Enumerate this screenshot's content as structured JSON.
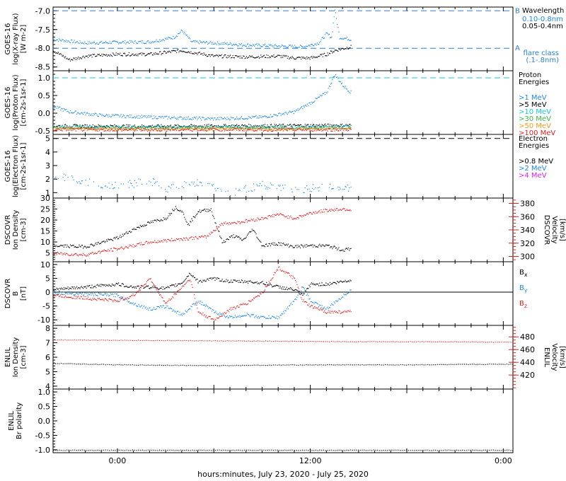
{
  "colors": {
    "black": "#000000",
    "blue": "#1e88e5",
    "cyan": "#12c8e0",
    "green": "#3cb44b",
    "orange": "#f39c12",
    "red": "#e02020",
    "magenta": "#e020e0",
    "dashblue": "#2a7fd0"
  },
  "xaxis": {
    "label": "hours:minutes, July 23, 2020 - July 25, 2020",
    "ticks": [
      "0:00",
      "12:00",
      "0:00"
    ],
    "tick_hours": [
      24,
      36,
      48
    ],
    "range_hours": [
      20,
      48.6
    ],
    "data_end_hour": 38.5
  },
  "chart_data": [
    {
      "type": "scatter",
      "panel": "xray",
      "ylabel_lines": [
        "GOES-16",
        "log(X-ray Flux)",
        "[W m-2]"
      ],
      "ylim": [
        -8.6,
        -6.9
      ],
      "yticks": [
        "-7.0",
        "-7.5",
        "-8.0",
        "-8.5"
      ],
      "ytick_values": [
        -7.0,
        -7.5,
        -8.0,
        -8.5
      ],
      "reference_lines": [
        {
          "label": "B",
          "y": -7.0
        },
        {
          "label": "A",
          "y": -8.0
        }
      ],
      "legend_title": "Wavelength",
      "series": [
        {
          "name": "0.10-0.8nm",
          "color": "blue",
          "points": [
            [
              20,
              -7.75
            ],
            [
              22,
              -7.85
            ],
            [
              24,
              -7.83
            ],
            [
              26,
              -7.82
            ],
            [
              27.5,
              -7.7
            ],
            [
              28,
              -7.52
            ],
            [
              28.6,
              -7.82
            ],
            [
              30,
              -7.85
            ],
            [
              32,
              -7.9
            ],
            [
              34,
              -7.93
            ],
            [
              35.5,
              -7.95
            ],
            [
              36.5,
              -7.85
            ],
            [
              37,
              -7.6
            ],
            [
              37.3,
              -7.7
            ],
            [
              37.5,
              -6.95
            ],
            [
              37.8,
              -7.7
            ],
            [
              38.5,
              -7.75
            ]
          ]
        },
        {
          "name": "0.05-0.4nm",
          "color": "black",
          "points": [
            [
              20,
              -8.05
            ],
            [
              21,
              -8.3
            ],
            [
              22,
              -8.2
            ],
            [
              24,
              -8.15
            ],
            [
              26,
              -8.15
            ],
            [
              28,
              -8.05
            ],
            [
              30,
              -8.2
            ],
            [
              32,
              -8.22
            ],
            [
              34,
              -8.2
            ],
            [
              35,
              -8.25
            ],
            [
              36,
              -8.25
            ],
            [
              37,
              -8.15
            ],
            [
              37.5,
              -8.05
            ],
            [
              38.5,
              -7.95
            ]
          ]
        }
      ],
      "annotation_lines": [
        "flare class",
        "(.1-.8nm)"
      ]
    },
    {
      "type": "scatter",
      "panel": "proton",
      "ylabel_lines": [
        "GOES-16",
        "log(Proton Flux)",
        "[cm-2s-1sr-1]"
      ],
      "ylim": [
        -0.6,
        1.2
      ],
      "yticks": [
        "1.0",
        "0.5",
        "0.0",
        "-0.5"
      ],
      "ytick_values": [
        1.0,
        0.5,
        0.0,
        -0.5
      ],
      "reference_lines": [
        {
          "label": "",
          "y": 1.0
        }
      ],
      "legend_title_lines": [
        "Proton",
        "Energies"
      ],
      "series": [
        {
          "name": ">1 MeV",
          "color": "blue",
          "points": [
            [
              20,
              0.2
            ],
            [
              21,
              0.05
            ],
            [
              23,
              -0.05
            ],
            [
              26,
              -0.1
            ],
            [
              30,
              -0.15
            ],
            [
              33,
              -0.1
            ],
            [
              35,
              0.05
            ],
            [
              36,
              0.3
            ],
            [
              37,
              0.6
            ],
            [
              37.5,
              1.1
            ],
            [
              38,
              0.8
            ],
            [
              38.5,
              0.6
            ]
          ]
        },
        {
          "name": ">5 MeV",
          "color": "black",
          "points": [
            [
              20,
              -0.35
            ],
            [
              25,
              -0.36
            ],
            [
              30,
              -0.35
            ],
            [
              35,
              -0.34
            ],
            [
              38.5,
              -0.33
            ]
          ]
        },
        {
          "name": ">10 MeV",
          "color": "cyan",
          "points": [
            [
              20,
              -0.38
            ],
            [
              25,
              -0.39
            ],
            [
              30,
              -0.38
            ],
            [
              35,
              -0.38
            ],
            [
              38.5,
              -0.37
            ]
          ]
        },
        {
          "name": ">30 MeV",
          "color": "green",
          "points": [
            [
              20,
              -0.4
            ],
            [
              25,
              -0.41
            ],
            [
              30,
              -0.4
            ],
            [
              35,
              -0.41
            ],
            [
              38.5,
              -0.4
            ]
          ]
        },
        {
          "name": ">50 MeV",
          "color": "orange",
          "points": [
            [
              20,
              -0.43
            ],
            [
              25,
              -0.44
            ],
            [
              30,
              -0.43
            ],
            [
              35,
              -0.44
            ],
            [
              38.5,
              -0.43
            ]
          ]
        },
        {
          "name": ">100 MeV",
          "color": "red",
          "points": [
            [
              20,
              -0.45
            ],
            [
              25,
              -0.46
            ],
            [
              30,
              -0.45
            ],
            [
              35,
              -0.46
            ],
            [
              38.5,
              -0.45
            ]
          ]
        }
      ]
    },
    {
      "type": "scatter",
      "panel": "electron",
      "ylabel_lines": [
        "GOES-16",
        "log(Electron Flux)",
        "[cm-2s-1sr-1]"
      ],
      "ylim": [
        0.6,
        5.3
      ],
      "yticks": [
        "1",
        "2",
        "3",
        "4",
        "5"
      ],
      "ytick_values": [
        1,
        2,
        3,
        4,
        5
      ],
      "reference_lines": [
        {
          "label": "",
          "y": 5.0,
          "color": "black"
        }
      ],
      "legend_title_lines": [
        "Electron",
        "Energies"
      ],
      "series": [
        {
          "name": ">0.8 MeV",
          "color": "black",
          "points": []
        },
        {
          "name": ">2 MeV",
          "color": "blue",
          "points": [
            [
              20,
              2.0
            ],
            [
              21,
              2.2
            ],
            [
              22,
              1.8
            ],
            [
              24,
              1.5
            ],
            [
              26,
              1.9
            ],
            [
              27,
              1.3
            ],
            [
              29,
              1.8
            ],
            [
              31,
              1.0
            ],
            [
              33,
              1.6
            ],
            [
              35,
              1.2
            ],
            [
              37,
              1.5
            ],
            [
              38.5,
              1.3
            ]
          ]
        },
        {
          "name": ">4 MeV",
          "color": "magenta",
          "points": []
        }
      ]
    },
    {
      "type": "scatter",
      "panel": "dscovr-plasma",
      "ylabel_lines": [
        "DSCOVR",
        "Ion Density",
        "[cm-3]"
      ],
      "ylim": [
        1,
        30
      ],
      "yticks": [
        "30",
        "25",
        "20",
        "15",
        "10",
        "5"
      ],
      "ytick_values": [
        30,
        25,
        20,
        15,
        10,
        5
      ],
      "right_ylabel_lines": [
        "DSCOVR",
        "Velocity",
        "[km/s]"
      ],
      "right_ylim": [
        292,
        388
      ],
      "right_yticks": [
        "380",
        "360",
        "340",
        "320",
        "300"
      ],
      "right_ytick_values": [
        380,
        360,
        340,
        320,
        300
      ],
      "series": [
        {
          "name": "density",
          "color": "black",
          "axis": "left",
          "points": [
            [
              20,
              8.5
            ],
            [
              22,
              8.0
            ],
            [
              23,
              10
            ],
            [
              24,
              12
            ],
            [
              25,
              16
            ],
            [
              26,
              19
            ],
            [
              27,
              21
            ],
            [
              27.6,
              26
            ],
            [
              28,
              24
            ],
            [
              28.4,
              18
            ],
            [
              29,
              24
            ],
            [
              29.8,
              25
            ],
            [
              30.5,
              10
            ],
            [
              31.2,
              13
            ],
            [
              31.8,
              11
            ],
            [
              32.4,
              16
            ],
            [
              33,
              8.5
            ],
            [
              34,
              9.5
            ],
            [
              35,
              8
            ],
            [
              36,
              8.5
            ],
            [
              37,
              8.5
            ],
            [
              38,
              6.5
            ],
            [
              38.5,
              7
            ]
          ]
        },
        {
          "name": "velocity",
          "color": "red",
          "axis": "right",
          "points": [
            [
              20,
              305
            ],
            [
              22,
              303
            ],
            [
              23,
              308
            ],
            [
              24,
              312
            ],
            [
              26,
              322
            ],
            [
              28,
              327
            ],
            [
              29.5,
              330
            ],
            [
              30.5,
              350
            ],
            [
              31.5,
              352
            ],
            [
              33,
              358
            ],
            [
              34,
              364
            ],
            [
              35,
              358
            ],
            [
              36,
              366
            ],
            [
              37,
              370
            ],
            [
              38,
              372
            ],
            [
              38.5,
              371
            ]
          ]
        }
      ]
    },
    {
      "type": "scatter",
      "panel": "dscovr-mag",
      "ylabel_lines": [
        "DSCOVR",
        "B",
        "[nT]"
      ],
      "ylim": [
        -12,
        11
      ],
      "yticks": [
        "10",
        "5",
        "0",
        "-5",
        "-10"
      ],
      "ytick_values": [
        10,
        5,
        0,
        -5,
        -10
      ],
      "zero_line": true,
      "series": [
        {
          "name": "Bx",
          "color": "black",
          "points": [
            [
              20,
              1
            ],
            [
              22,
              2
            ],
            [
              24,
              3
            ],
            [
              25,
              2
            ],
            [
              26,
              2
            ],
            [
              27,
              1.5
            ],
            [
              28,
              3.5
            ],
            [
              28.5,
              7
            ],
            [
              29,
              4
            ],
            [
              30,
              5
            ],
            [
              31,
              4
            ],
            [
              32,
              4
            ],
            [
              33,
              3.5
            ],
            [
              34,
              2
            ],
            [
              35,
              1
            ],
            [
              35.5,
              -1
            ],
            [
              36,
              3
            ],
            [
              37,
              3
            ],
            [
              38.5,
              4.5
            ]
          ]
        },
        {
          "name": "By",
          "color": "blue",
          "points": [
            [
              20,
              0
            ],
            [
              22,
              -0.5
            ],
            [
              24,
              -1
            ],
            [
              25,
              -4
            ],
            [
              26,
              -6
            ],
            [
              27,
              -5
            ],
            [
              28,
              -8
            ],
            [
              29,
              -3
            ],
            [
              30,
              -7
            ],
            [
              31,
              -9
            ],
            [
              32,
              -8
            ],
            [
              33,
              -9
            ],
            [
              34,
              -9
            ],
            [
              35,
              -3
            ],
            [
              35.5,
              2
            ],
            [
              36,
              -3
            ],
            [
              37,
              -6
            ],
            [
              38.5,
              1
            ]
          ]
        },
        {
          "name": "Bz",
          "color": "red",
          "points": [
            [
              20,
              -1
            ],
            [
              22,
              -2
            ],
            [
              24,
              -3
            ],
            [
              25,
              -1
            ],
            [
              26,
              5
            ],
            [
              27,
              -4
            ],
            [
              28,
              2
            ],
            [
              28.5,
              5
            ],
            [
              29,
              -7
            ],
            [
              30,
              -10
            ],
            [
              31,
              -6
            ],
            [
              32,
              -4
            ],
            [
              33,
              0
            ],
            [
              34,
              9
            ],
            [
              35,
              5
            ],
            [
              35.5,
              -3
            ],
            [
              36,
              -5
            ],
            [
              37,
              -7
            ],
            [
              38.5,
              -7
            ]
          ]
        }
      ],
      "legend_labels": [
        {
          "base": "B",
          "sub": "x",
          "color": "black"
        },
        {
          "base": "B",
          "sub": "y",
          "color": "blue"
        },
        {
          "base": "B",
          "sub": "z",
          "color": "red"
        }
      ]
    },
    {
      "type": "scatter",
      "panel": "enlil-plasma",
      "ylabel_lines": [
        "ENLIL",
        "Ion Density",
        "[cm-3]"
      ],
      "ylim": [
        3.8,
        8.2
      ],
      "yticks": [
        "8",
        "7",
        "6",
        "5",
        "4"
      ],
      "ytick_values": [
        8,
        7,
        6,
        5,
        4
      ],
      "right_ylabel_lines": [
        "ENLIL",
        "Velocity",
        "[km/s]"
      ],
      "right_ylim": [
        398,
        498
      ],
      "right_yticks": [
        "480",
        "460",
        "440",
        "420"
      ],
      "right_ytick_values": [
        480,
        460,
        440,
        420
      ],
      "series": [
        {
          "name": "density",
          "color": "black",
          "axis": "left",
          "points": [
            [
              20,
              5.6
            ],
            [
              24,
              5.5
            ],
            [
              30,
              5.45
            ],
            [
              36,
              5.5
            ],
            [
              42,
              5.5
            ],
            [
              48.6,
              5.55
            ]
          ]
        },
        {
          "name": "velocity",
          "color": "red",
          "axis": "right",
          "points": [
            [
              20,
              476
            ],
            [
              26,
              475
            ],
            [
              32,
              474
            ],
            [
              38,
              473
            ],
            [
              44,
              473
            ],
            [
              48.6,
              472
            ]
          ]
        }
      ]
    },
    {
      "type": "scatter",
      "panel": "enlil-polarity",
      "ylabel_lines": [
        "ENLIL",
        "Br polarity"
      ],
      "ylim": [
        -1.1,
        1.1
      ],
      "yticks": [
        "1.0",
        "0.5",
        "0.0",
        "-0.5",
        "-1.0"
      ],
      "ytick_values": [
        1.0,
        0.5,
        0.0,
        -0.5,
        -1.0
      ],
      "series": [
        {
          "name": "polarity",
          "color": "black",
          "points": [
            [
              20,
              -1.0
            ],
            [
              48.6,
              -1.0
            ]
          ]
        }
      ]
    }
  ]
}
